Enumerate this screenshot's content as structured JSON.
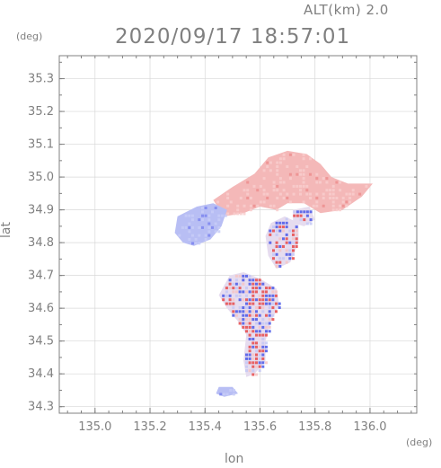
{
  "header": {
    "altitude": "ALT(km) 2.0",
    "timestamp": "2020/09/17 18:57:01"
  },
  "chart_data": {
    "type": "heatmap",
    "title": "2020/09/17 18:57:01",
    "xlabel": "lon",
    "ylabel": "lat",
    "x_unit": "(deg)",
    "y_unit": "(deg)",
    "xlim": [
      134.87,
      136.17
    ],
    "ylim": [
      34.28,
      35.37
    ],
    "x_ticks": [
      "135.0",
      "135.2",
      "135.4",
      "135.6",
      "135.8",
      "136.0"
    ],
    "y_ticks": [
      "34.3",
      "34.4",
      "34.5",
      "34.6",
      "34.7",
      "34.8",
      "34.9",
      "35.0",
      "35.1",
      "35.2",
      "35.3"
    ],
    "grid": true,
    "colors": {
      "positive": "#f4b8b8",
      "negative": "#b8bef4",
      "strong_positive": "#e84a4a",
      "strong_negative": "#4a58e8",
      "axis": "#808080"
    },
    "regions": [
      {
        "name": "north-positive",
        "sign": "positive",
        "intensity": 0.35,
        "polygon": [
          [
            135.43,
            34.93
          ],
          [
            135.5,
            34.97
          ],
          [
            135.58,
            35.01
          ],
          [
            135.63,
            35.06
          ],
          [
            135.7,
            35.08
          ],
          [
            135.77,
            35.07
          ],
          [
            135.82,
            35.04
          ],
          [
            135.86,
            35.0
          ],
          [
            135.92,
            34.98
          ],
          [
            136.01,
            34.98
          ],
          [
            135.97,
            34.94
          ],
          [
            135.9,
            34.9
          ],
          [
            135.82,
            34.89
          ],
          [
            135.76,
            34.92
          ],
          [
            135.7,
            34.92
          ],
          [
            135.66,
            34.9
          ],
          [
            135.6,
            34.91
          ],
          [
            135.54,
            34.89
          ],
          [
            135.47,
            34.88
          ]
        ]
      },
      {
        "name": "west-negative",
        "sign": "negative",
        "intensity": 0.4,
        "polygon": [
          [
            135.3,
            34.88
          ],
          [
            135.37,
            34.91
          ],
          [
            135.43,
            34.92
          ],
          [
            135.48,
            34.9
          ],
          [
            135.46,
            34.85
          ],
          [
            135.42,
            34.81
          ],
          [
            135.36,
            34.79
          ],
          [
            135.32,
            34.8
          ],
          [
            135.29,
            34.83
          ]
        ]
      },
      {
        "name": "central-mixed",
        "sign": "mixed",
        "intensity": 0.8,
        "polygon": [
          [
            135.49,
            34.7
          ],
          [
            135.54,
            34.71
          ],
          [
            135.6,
            34.69
          ],
          [
            135.66,
            34.66
          ],
          [
            135.67,
            34.61
          ],
          [
            135.64,
            34.56
          ],
          [
            135.62,
            34.5
          ],
          [
            135.62,
            34.44
          ],
          [
            135.58,
            34.4
          ],
          [
            135.55,
            34.39
          ],
          [
            135.54,
            34.44
          ],
          [
            135.55,
            34.52
          ],
          [
            135.52,
            34.56
          ],
          [
            135.48,
            34.6
          ],
          [
            135.45,
            34.64
          ]
        ]
      },
      {
        "name": "east-mixed",
        "sign": "mixed",
        "intensity": 0.6,
        "polygon": [
          [
            135.64,
            34.86
          ],
          [
            135.69,
            34.88
          ],
          [
            135.74,
            34.86
          ],
          [
            135.74,
            34.8
          ],
          [
            135.71,
            34.74
          ],
          [
            135.66,
            34.72
          ],
          [
            135.63,
            34.76
          ],
          [
            135.62,
            34.82
          ]
        ]
      },
      {
        "name": "northeast-mixed",
        "sign": "mixed",
        "intensity": 0.55,
        "polygon": [
          [
            135.72,
            34.9
          ],
          [
            135.78,
            34.91
          ],
          [
            135.8,
            34.87
          ],
          [
            135.76,
            34.85
          ],
          [
            135.72,
            34.86
          ]
        ]
      },
      {
        "name": "southwest-fragment",
        "sign": "negative",
        "intensity": 0.7,
        "polygon": [
          [
            135.45,
            34.36
          ],
          [
            135.5,
            34.36
          ],
          [
            135.52,
            34.34
          ],
          [
            135.47,
            34.33
          ],
          [
            135.44,
            34.34
          ]
        ]
      }
    ]
  }
}
